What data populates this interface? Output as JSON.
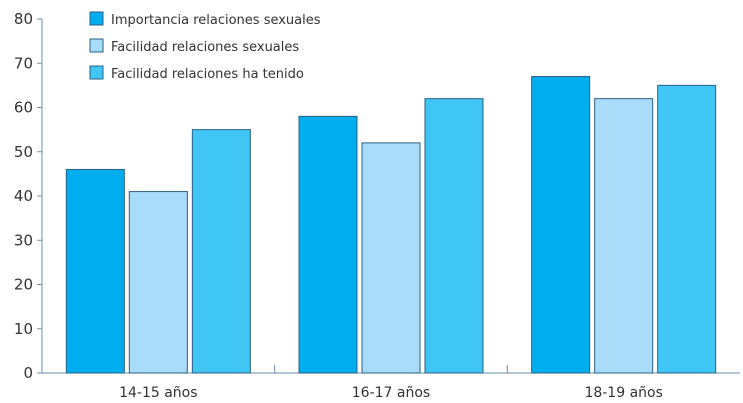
{
  "chart_data": {
    "type": "bar",
    "categories": [
      "14-15 años",
      "16-17 años",
      "18-19 años"
    ],
    "series": [
      {
        "name": "Importancia relaciones sexuales",
        "values": [
          46,
          58,
          67
        ],
        "color": "#00aeef"
      },
      {
        "name": "Facilidad relaciones sexuales",
        "values": [
          41,
          52,
          62
        ],
        "color": "#a8dcf8"
      },
      {
        "name": "Facilidad relaciones ha tenido",
        "values": [
          55,
          62,
          65
        ],
        "color": "#3fc6f4"
      }
    ],
    "ylim": [
      0,
      80
    ],
    "yticks": [
      0,
      10,
      20,
      30,
      40,
      50,
      60,
      70,
      80
    ],
    "grid": false,
    "legend": "top-left"
  }
}
